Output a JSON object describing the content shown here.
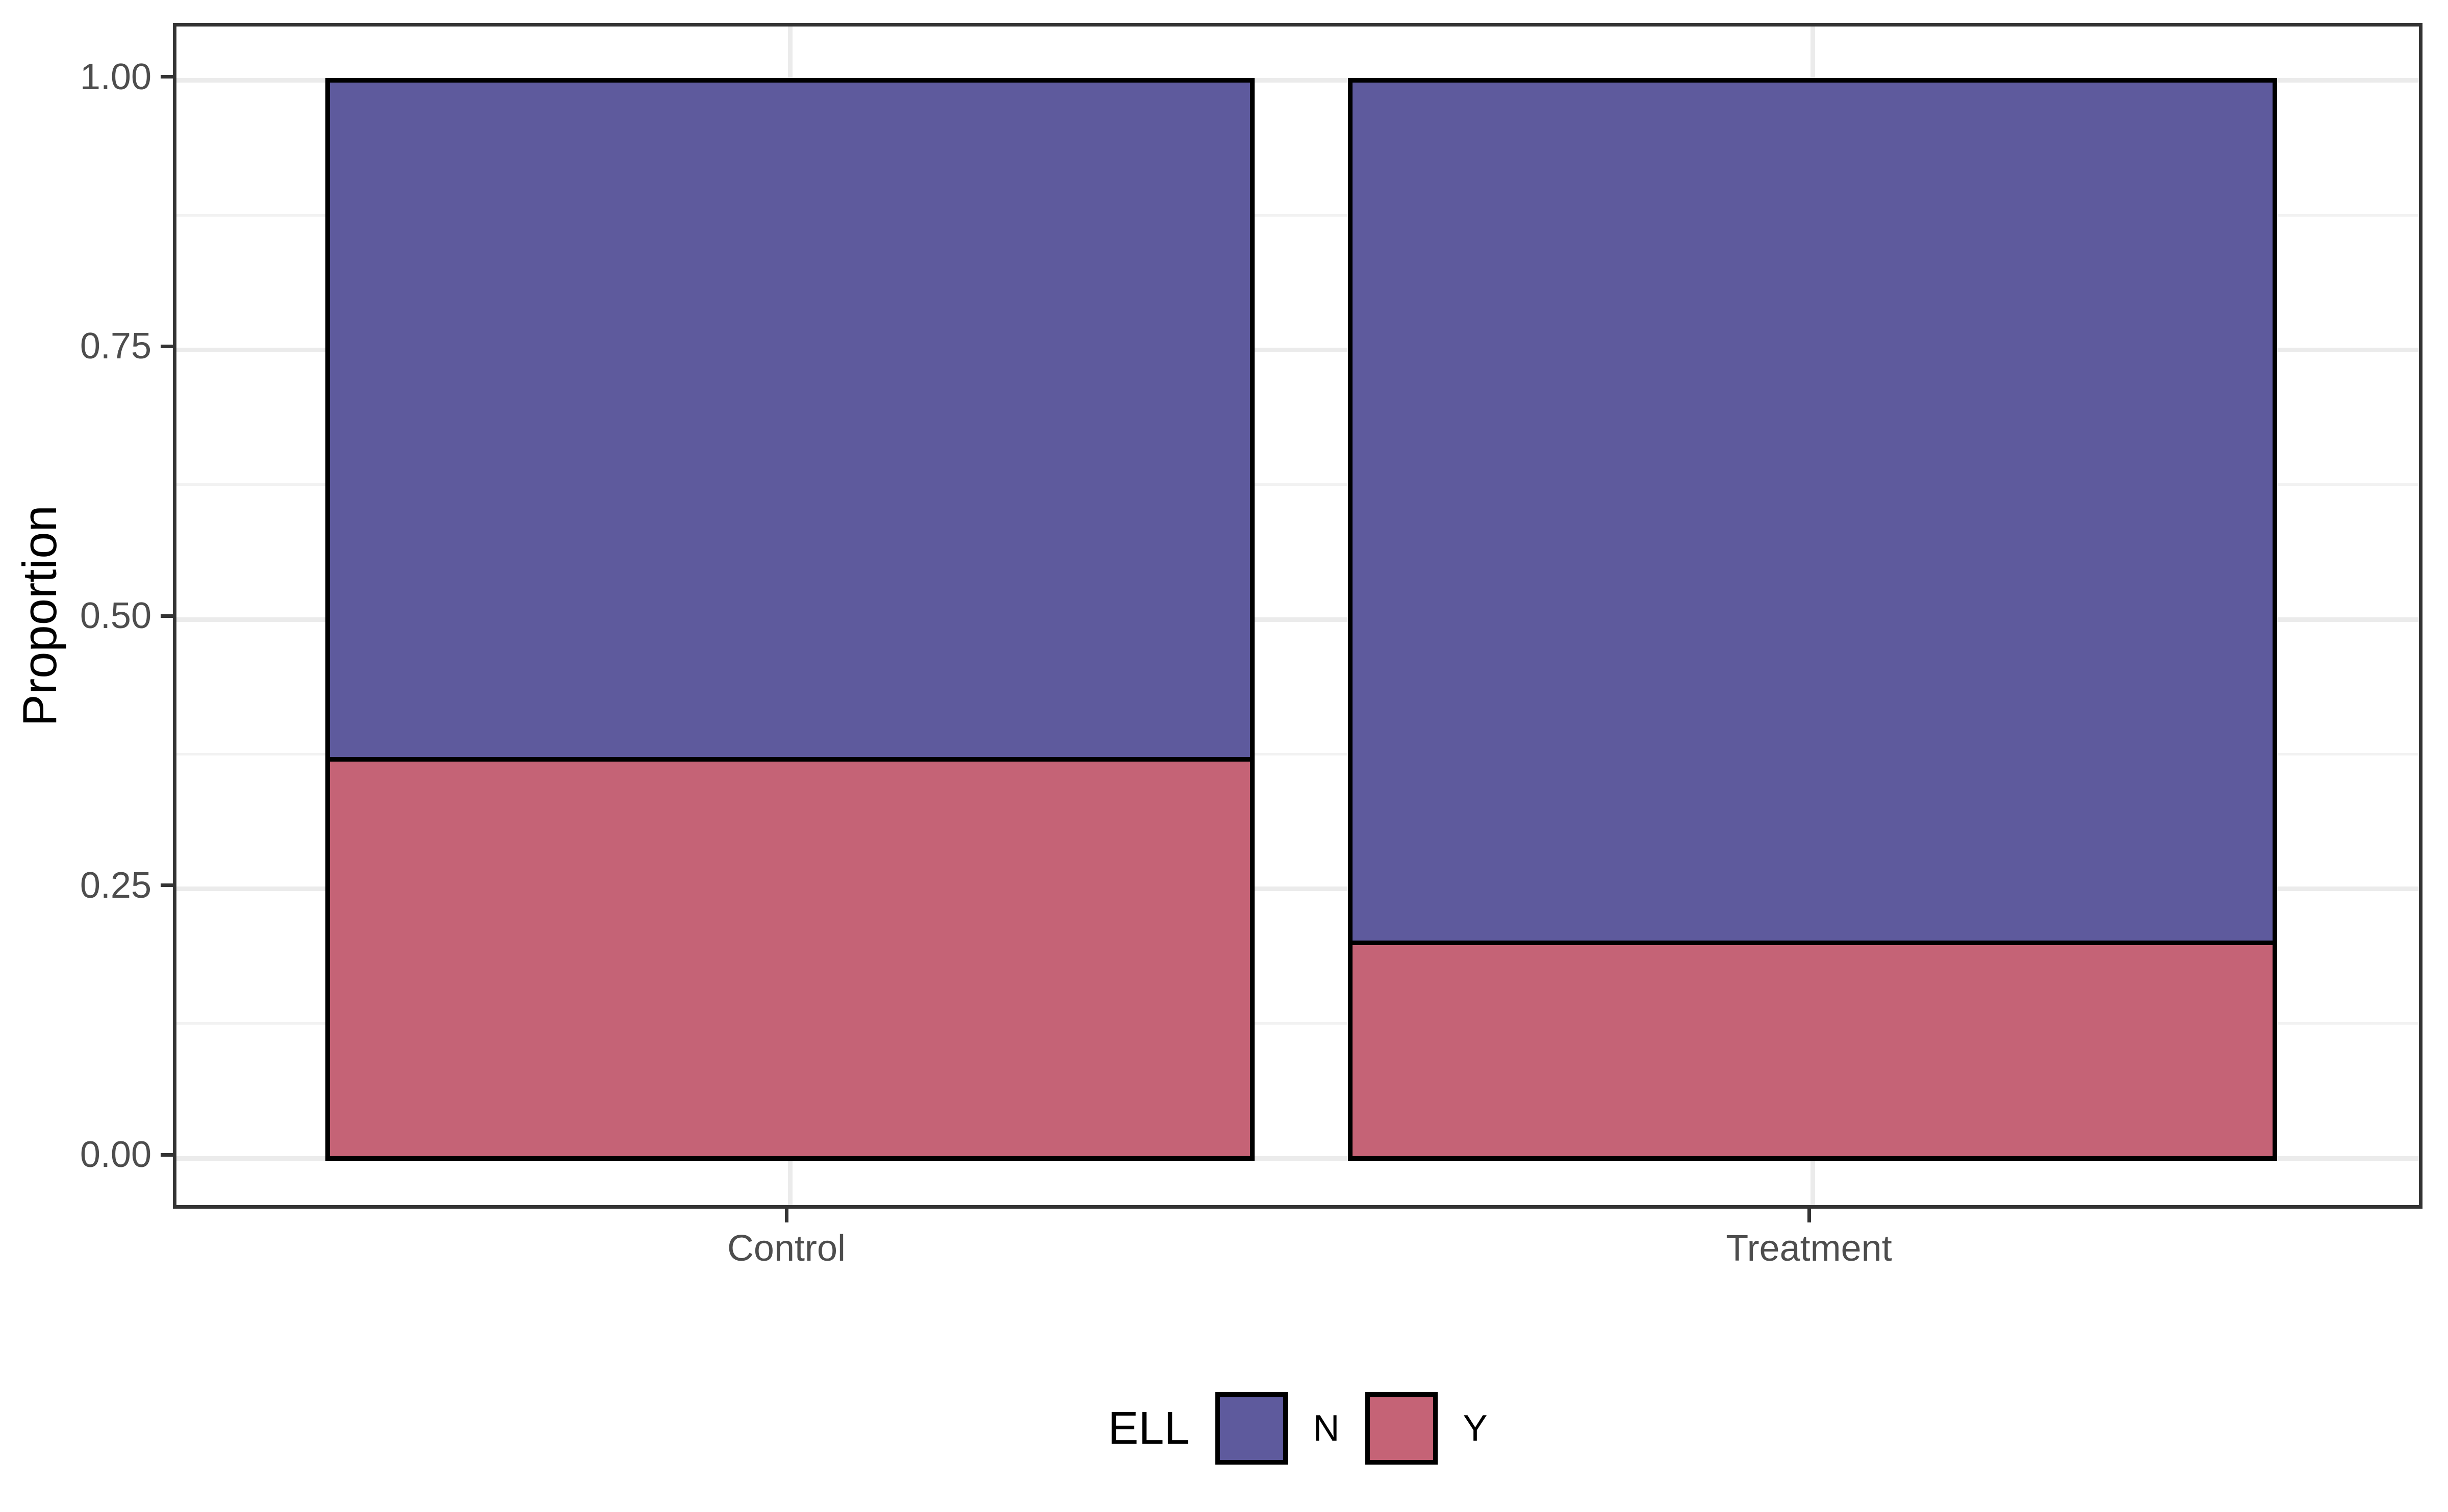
{
  "chart_data": {
    "type": "bar",
    "subtype": "stacked-proportion-fill",
    "title": "",
    "xlabel": "",
    "ylabel": "Proportion",
    "categories": [
      "Control",
      "Treatment"
    ],
    "series": [
      {
        "name": "N",
        "color": "#5e5a9d",
        "values": [
          0.63,
          0.8
        ]
      },
      {
        "name": "Y",
        "color": "#c56376",
        "values": [
          0.37,
          0.2
        ]
      }
    ],
    "stack_order": "first-series-on-top",
    "ylim": [
      0,
      1
    ],
    "y_expansion": 0.05,
    "yticks": [
      {
        "value": 0.0,
        "label": "0.00"
      },
      {
        "value": 0.25,
        "label": "0.25"
      },
      {
        "value": 0.5,
        "label": "0.50"
      },
      {
        "value": 0.75,
        "label": "0.75"
      },
      {
        "value": 1.0,
        "label": "1.00"
      }
    ],
    "minor_ticks": [
      0.125,
      0.375,
      0.625,
      0.875
    ],
    "grid": "major+minor horizontal, vertical at category centers",
    "bar_border_color": "#000000",
    "panel_border_color": "#333333",
    "gridline_color": "#ebebeb",
    "tick_color": "#333333",
    "tick_label_color": "#4d4d4d",
    "legend": {
      "title": "ELL",
      "position": "bottom-center",
      "entries": [
        {
          "label": "N",
          "color": "#5e5a9d"
        },
        {
          "label": "Y",
          "color": "#c56376"
        }
      ]
    }
  }
}
